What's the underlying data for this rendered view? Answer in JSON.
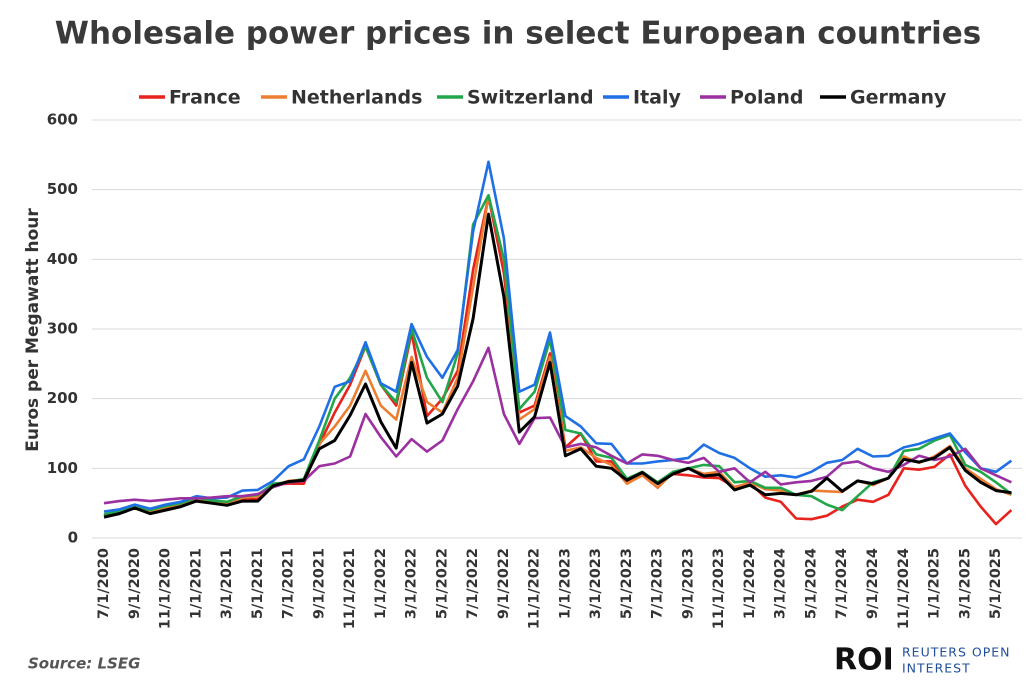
{
  "chart_data": {
    "type": "line",
    "title": "Wholesale power prices in select European countries",
    "y_label": "Euros per Megawatt hour",
    "source": "Source: LSEG",
    "logo_text": "ROI",
    "logo_subtitle": [
      "REUTERS OPEN",
      "INTEREST"
    ],
    "categories": [
      "7/1/2020",
      null,
      "9/1/2020",
      null,
      "11/1/2020",
      null,
      "1/1/2021",
      null,
      "3/1/2021",
      null,
      "5/1/2021",
      null,
      "7/1/2021",
      null,
      "9/1/2021",
      null,
      "11/1/2021",
      null,
      "1/1/2022",
      null,
      "3/1/2022",
      null,
      "5/1/2022",
      null,
      "7/1/2022",
      null,
      "9/1/2022",
      null,
      "11/1/2022",
      null,
      "1/1/2023",
      null,
      "3/1/2023",
      null,
      "5/1/2023",
      null,
      "7/1/2023",
      null,
      "9/1/2023",
      null,
      "11/1/2023",
      null,
      "1/1/2024",
      null,
      "3/1/2024",
      null,
      "5/1/2024",
      null,
      "7/1/2024",
      null,
      "9/1/2024",
      null,
      "11/1/2024",
      null,
      "1/1/2025",
      null,
      "3/1/2025",
      null,
      "5/1/2025",
      null
    ],
    "series": [
      {
        "name": "France",
        "color": "#e8221c",
        "values": [
          32,
          36,
          45,
          37,
          43,
          46,
          55,
          50,
          50,
          55,
          56,
          77,
          78,
          78,
          134,
          180,
          220,
          275,
          220,
          190,
          295,
          175,
          200,
          240,
          385,
          490,
          380,
          180,
          190,
          265,
          130,
          150,
          110,
          110,
          80,
          92,
          80,
          92,
          90,
          87,
          86,
          73,
          79,
          58,
          52,
          28,
          27,
          32,
          45,
          55,
          52,
          62,
          100,
          98,
          102,
          120,
          75,
          45,
          20,
          40
        ]
      },
      {
        "name": "Netherlands",
        "color": "#ed7d31",
        "values": [
          33,
          37,
          45,
          38,
          44,
          48,
          56,
          52,
          50,
          58,
          60,
          75,
          82,
          84,
          135,
          160,
          190,
          240,
          190,
          170,
          260,
          195,
          180,
          230,
          360,
          490,
          400,
          170,
          185,
          260,
          125,
          130,
          115,
          105,
          78,
          90,
          72,
          94,
          100,
          92,
          95,
          72,
          80,
          70,
          68,
          62,
          68,
          67,
          66,
          82,
          76,
          86,
          117,
          108,
          117,
          132,
          100,
          85,
          70,
          62
        ]
      },
      {
        "name": "Switzerland",
        "color": "#22a64a",
        "values": [
          34,
          38,
          46,
          40,
          46,
          50,
          58,
          54,
          52,
          60,
          62,
          78,
          80,
          85,
          140,
          200,
          230,
          275,
          220,
          195,
          300,
          230,
          195,
          265,
          450,
          492,
          400,
          185,
          210,
          285,
          155,
          150,
          120,
          115,
          85,
          95,
          80,
          95,
          100,
          105,
          103,
          80,
          82,
          72,
          72,
          62,
          60,
          48,
          40,
          60,
          80,
          86,
          125,
          128,
          140,
          148,
          105,
          95,
          80,
          63
        ]
      },
      {
        "name": "Italy",
        "color": "#1f6fe5",
        "values": [
          38,
          41,
          48,
          42,
          48,
          52,
          60,
          57,
          58,
          68,
          69,
          82,
          103,
          113,
          160,
          217,
          225,
          281,
          222,
          210,
          307,
          260,
          230,
          270,
          440,
          540,
          430,
          210,
          220,
          295,
          175,
          160,
          136,
          135,
          107,
          107,
          110,
          112,
          115,
          134,
          122,
          115,
          100,
          88,
          90,
          87,
          95,
          108,
          112,
          128,
          117,
          118,
          130,
          135,
          143,
          150,
          123,
          100,
          95,
          111
        ]
      },
      {
        "name": "Poland",
        "color": "#9b30a0",
        "values": [
          50,
          53,
          55,
          53,
          55,
          57,
          57,
          58,
          60,
          60,
          63,
          73,
          80,
          82,
          103,
          107,
          117,
          178,
          145,
          117,
          142,
          124,
          140,
          185,
          225,
          273,
          178,
          135,
          172,
          173,
          130,
          135,
          130,
          118,
          107,
          120,
          118,
          112,
          108,
          115,
          95,
          100,
          80,
          95,
          77,
          80,
          82,
          88,
          107,
          110,
          100,
          95,
          105,
          118,
          112,
          117,
          128,
          100,
          90,
          80
        ]
      },
      {
        "name": "Germany",
        "color": "#000000",
        "values": [
          30,
          35,
          43,
          35,
          40,
          45,
          53,
          50,
          47,
          53,
          53,
          75,
          81,
          83,
          128,
          140,
          176,
          221,
          167,
          129,
          252,
          165,
          178,
          218,
          315,
          465,
          346,
          152,
          174,
          252,
          118,
          128,
          103,
          100,
          83,
          94,
          78,
          92,
          100,
          89,
          91,
          69,
          76,
          62,
          64,
          62,
          67,
          86,
          67,
          82,
          78,
          86,
          113,
          109,
          115,
          130,
          97,
          80,
          68,
          65
        ]
      }
    ],
    "ylim": [
      0,
      600
    ],
    "yticks": [
      0,
      100,
      200,
      300,
      400,
      500,
      600
    ],
    "grid": true,
    "legend": "top"
  }
}
